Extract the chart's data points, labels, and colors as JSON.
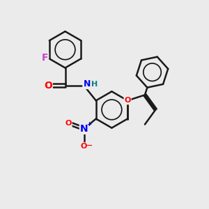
{
  "background_color": "#ebebeb",
  "bond_color": "#1a1a1a",
  "bond_width": 1.8,
  "dbo": 0.08,
  "atom_colors": {
    "F": "#cc44cc",
    "O": "#ff0000",
    "N": "#0000ee",
    "H": "#008080",
    "C": "#1a1a1a"
  },
  "fs_main": 10,
  "fs_small": 8
}
